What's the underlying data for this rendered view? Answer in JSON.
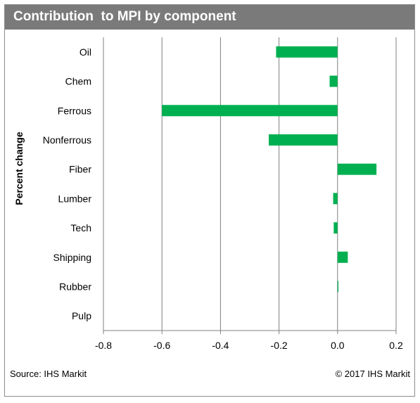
{
  "header": {
    "title": "Contribution  to MPI by component"
  },
  "footer": {
    "source": "Source: IHS Markit",
    "copyright": "© 2017 IHS Markit"
  },
  "chart_data": {
    "type": "bar",
    "orientation": "horizontal",
    "title": "Contribution  to MPI by component",
    "ylabel": "Percent change",
    "xlabel": "",
    "categories": [
      "Oil",
      "Chem",
      "Ferrous",
      "Nonferrous",
      "Fiber",
      "Lumber",
      "Tech",
      "Shipping",
      "Rubber",
      "Pulp"
    ],
    "values": [
      -0.21,
      -0.027,
      -0.6,
      -0.235,
      0.133,
      -0.015,
      -0.013,
      0.035,
      0.003,
      0.0
    ],
    "xlim": [
      -0.8,
      0.2
    ],
    "xticks": [
      -0.8,
      -0.6,
      -0.4,
      -0.2,
      0.0,
      0.2
    ],
    "xtick_labels": [
      "-0.8",
      "-0.6",
      "-0.4",
      "-0.2",
      "0.0",
      "0.2"
    ],
    "grid": true,
    "legend": false,
    "bar_color": "#00b050",
    "gridline_color": "#808080",
    "axis_color": "#808080"
  }
}
